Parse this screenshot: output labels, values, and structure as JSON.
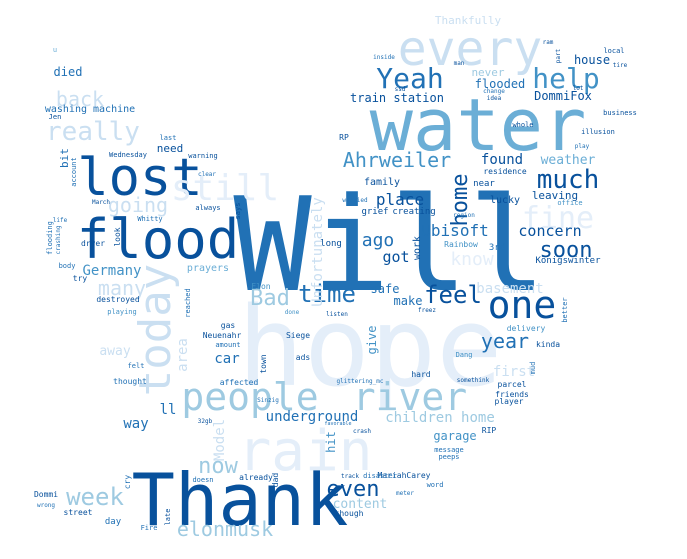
{
  "words": [
    {
      "text": "Will",
      "shade": 5
    },
    {
      "text": "hope",
      "shade": 0
    },
    {
      "text": "water",
      "shade": 3
    },
    {
      "text": "Thank",
      "shade": 6
    },
    {
      "text": "rain",
      "shade": 0
    },
    {
      "text": "flood",
      "shade": 6
    },
    {
      "text": "every",
      "shade": 1
    },
    {
      "text": "lost",
      "shade": 6
    },
    {
      "text": "today",
      "shade": 1
    },
    {
      "text": "people",
      "shade": 2
    },
    {
      "text": "river",
      "shade": 2
    },
    {
      "text": "one",
      "shade": 6
    },
    {
      "text": "still",
      "shade": 0
    },
    {
      "text": "Yeah",
      "shade": 5
    },
    {
      "text": "help",
      "shade": 4
    },
    {
      "text": "fine",
      "shade": 0
    },
    {
      "text": "home",
      "shade": 6
    },
    {
      "text": "much",
      "shade": 6
    },
    {
      "text": "really",
      "shade": 1
    },
    {
      "text": "time",
      "shade": 5
    },
    {
      "text": "feel",
      "shade": 6
    },
    {
      "text": "soon",
      "shade": 6
    },
    {
      "text": "week",
      "shade": 2
    },
    {
      "text": "now",
      "shade": 2
    },
    {
      "text": "Bad",
      "shade": 2
    },
    {
      "text": "back",
      "shade": 1
    },
    {
      "text": "even",
      "shade": 6
    },
    {
      "text": "Ahrweiler",
      "shade": 4
    },
    {
      "text": "elonmusk",
      "shade": 2
    },
    {
      "text": "going",
      "shade": 1
    },
    {
      "text": "many",
      "shade": 1
    },
    {
      "text": "year",
      "shade": 5
    },
    {
      "text": "ago",
      "shade": 5
    },
    {
      "text": "know",
      "shade": 0
    },
    {
      "text": "place",
      "shade": 6
    },
    {
      "text": "Ubisoft",
      "shade": 5
    },
    {
      "text": "concern",
      "shade": 6
    },
    {
      "text": "got",
      "shade": 6
    },
    {
      "text": "Germany",
      "shade": 4
    },
    {
      "text": "found",
      "shade": 6
    },
    {
      "text": "weather",
      "shade": 3
    },
    {
      "text": "leaving",
      "shade": 6
    },
    {
      "text": "Unfortunately",
      "shade": 1
    },
    {
      "text": "children home",
      "shade": 2
    },
    {
      "text": "underground",
      "shade": 5
    },
    {
      "text": "content",
      "shade": 2
    },
    {
      "text": "basement",
      "shade": 1
    },
    {
      "text": "area",
      "shade": 1
    },
    {
      "text": "Model",
      "shade": 1
    },
    {
      "text": "car",
      "shade": 5
    },
    {
      "text": "way",
      "shade": 5
    },
    {
      "text": "ll",
      "shade": 5
    },
    {
      "text": "away",
      "shade": 1
    },
    {
      "text": "first",
      "shade": 1
    },
    {
      "text": "give",
      "shade": 4
    },
    {
      "text": "garage",
      "shade": 4
    },
    {
      "text": "hit",
      "shade": 4
    },
    {
      "text": "safe",
      "shade": 5
    },
    {
      "text": "make",
      "shade": 5
    },
    {
      "text": "train station",
      "shade": 6
    },
    {
      "text": "flooded",
      "shade": 5
    },
    {
      "text": "DommiFox",
      "shade": 6
    },
    {
      "text": "house",
      "shade": 6
    },
    {
      "text": "never",
      "shade": 2
    },
    {
      "text": "died",
      "shade": 5
    },
    {
      "text": "need",
      "shade": 6
    },
    {
      "text": "bit",
      "shade": 5
    },
    {
      "text": "washing machine",
      "shade": 5
    },
    {
      "text": "Thankfully",
      "shade": 1
    },
    {
      "text": "work",
      "shade": 6
    },
    {
      "text": "lucky",
      "shade": 6
    },
    {
      "text": "family",
      "shade": 6
    },
    {
      "text": "3rd",
      "shade": 5
    },
    {
      "text": "long",
      "shade": 6
    },
    {
      "text": "Königswinter",
      "shade": 6
    },
    {
      "text": "Rainbow",
      "shade": 4
    },
    {
      "text": "creating",
      "shade": 6
    },
    {
      "text": "grief",
      "shade": 6
    },
    {
      "text": "near",
      "shade": 6
    },
    {
      "text": "residence",
      "shade": 6
    },
    {
      "text": "Elon",
      "shade": 4
    },
    {
      "text": "Siege",
      "shade": 6
    },
    {
      "text": "ads",
      "shade": 6
    },
    {
      "text": "town",
      "shade": 6
    },
    {
      "text": "affected",
      "shade": 5
    },
    {
      "text": "thought",
      "shade": 5
    },
    {
      "text": "hard",
      "shade": 6
    },
    {
      "text": "kinda",
      "shade": 6
    },
    {
      "text": "Dang",
      "shade": 4
    },
    {
      "text": "mud",
      "shade": 5
    },
    {
      "text": "parcel",
      "shade": 6
    },
    {
      "text": "player",
      "shade": 6
    },
    {
      "text": "friends",
      "shade": 6
    },
    {
      "text": "RIP",
      "shade": 6
    },
    {
      "text": "somethink",
      "shade": 6
    },
    {
      "text": "glittering_mc",
      "shade": 5
    },
    {
      "text": "MariahCarey",
      "shade": 6
    },
    {
      "text": "peeps",
      "shade": 5
    },
    {
      "text": "message",
      "shade": 5
    },
    {
      "text": "disaster",
      "shade": 5
    },
    {
      "text": "word",
      "shade": 5
    },
    {
      "text": "meter",
      "shade": 5
    },
    {
      "text": "crash",
      "shade": 6
    },
    {
      "text": "favorable",
      "shade": 5
    },
    {
      "text": "though",
      "shade": 6
    },
    {
      "text": "already",
      "shade": 6
    },
    {
      "text": "dad",
      "shade": 6
    },
    {
      "text": "cry",
      "shade": 5
    },
    {
      "text": "doesn",
      "shade": 5
    },
    {
      "text": "late",
      "shade": 6
    },
    {
      "text": "Fire",
      "shade": 5
    },
    {
      "text": "day",
      "shade": 5
    },
    {
      "text": "street",
      "shade": 6
    },
    {
      "text": "Dommi",
      "shade": 6
    },
    {
      "text": "wrong",
      "shade": 5
    },
    {
      "text": "Neuenahr",
      "shade": 6
    },
    {
      "text": "destroyed",
      "shade": 6
    },
    {
      "text": "reached",
      "shade": 5
    },
    {
      "text": "playing",
      "shade": 4
    },
    {
      "text": "try",
      "shade": 6
    },
    {
      "text": "body",
      "shade": 5
    },
    {
      "text": "dryer",
      "shade": 6
    },
    {
      "text": "look",
      "shade": 6
    },
    {
      "text": "flooding",
      "shade": 5
    },
    {
      "text": "crashing",
      "shade": 5
    },
    {
      "text": "life",
      "shade": 5
    },
    {
      "text": "March",
      "shade": 6
    },
    {
      "text": "Whitty",
      "shade": 5
    },
    {
      "text": "always",
      "shade": 6
    },
    {
      "text": "says",
      "shade": 6
    },
    {
      "text": "warning",
      "shade": 6
    },
    {
      "text": "Wednesday",
      "shade": 6
    },
    {
      "text": "account",
      "shade": 5
    },
    {
      "text": "Jen",
      "shade": 6
    },
    {
      "text": "last",
      "shade": 5
    },
    {
      "text": "prayers",
      "shade": 3
    },
    {
      "text": "gas",
      "shade": 6
    },
    {
      "text": "amount",
      "shade": 5
    },
    {
      "text": "felt",
      "shade": 5
    },
    {
      "text": "listen",
      "shade": 6
    },
    {
      "text": "freez",
      "shade": 6
    },
    {
      "text": "better",
      "shade": 5
    },
    {
      "text": "delivery",
      "shade": 4
    },
    {
      "text": "whole",
      "shade": 6
    },
    {
      "text": "illusion",
      "shade": 6
    },
    {
      "text": "business",
      "shade": 6
    },
    {
      "text": "play",
      "shade": 5
    },
    {
      "text": "local",
      "shade": 6
    },
    {
      "text": "part",
      "shade": 6
    },
    {
      "text": "lot",
      "shade": 6
    },
    {
      "text": "idea",
      "shade": 6
    },
    {
      "text": "change",
      "shade": 5
    },
    {
      "text": "man",
      "shade": 6
    },
    {
      "text": "inside",
      "shade": 5
    },
    {
      "text": "ram",
      "shade": 6
    },
    {
      "text": "tire",
      "shade": 6
    },
    {
      "text": "RP",
      "shade": 6
    },
    {
      "text": "region",
      "shade": 5
    },
    {
      "text": "office",
      "shade": 4
    },
    {
      "text": "worried",
      "shade": 5
    },
    {
      "text": "done",
      "shade": 4
    },
    {
      "text": "Sinzig",
      "shade": 5
    },
    {
      "text": "32gb",
      "shade": 6
    },
    {
      "text": "track",
      "shade": 6
    },
    {
      "text": "clear",
      "shade": 5
    },
    {
      "text": "ssd",
      "shade": 6
    },
    {
      "text": "u",
      "shade": 3
    }
  ]
}
